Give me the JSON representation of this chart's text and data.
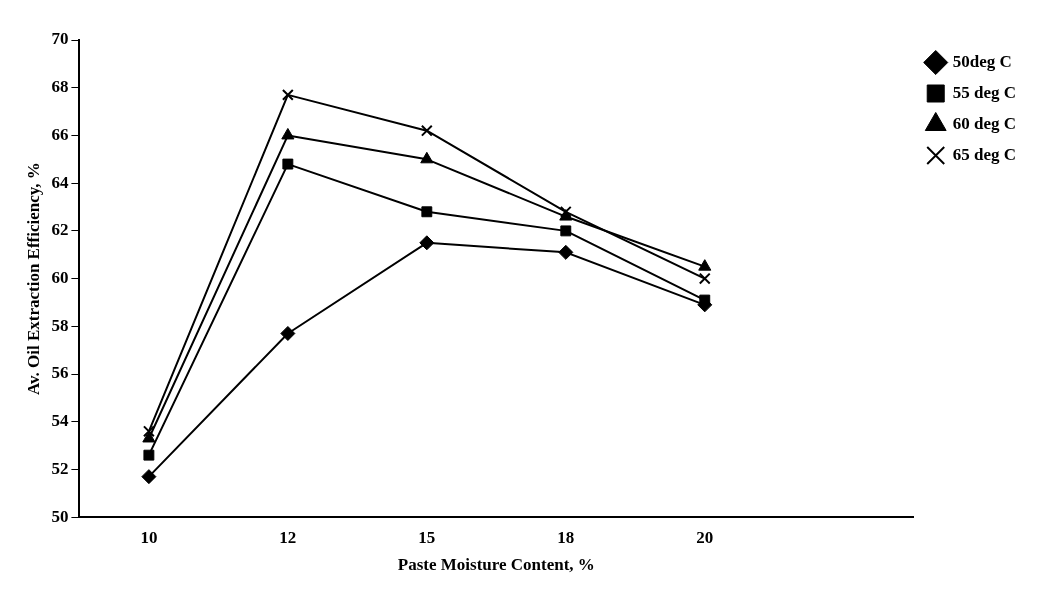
{
  "chart_data": {
    "type": "line",
    "xlabel": "Paste Moisture Content, %",
    "ylabel": "Av. Oil Extraction Efficiency, %",
    "categories": [
      "10",
      "12",
      "15",
      "18",
      "20",
      null
    ],
    "ylim": [
      50,
      70
    ],
    "yticks": [
      50,
      52,
      54,
      56,
      58,
      60,
      62,
      64,
      66,
      68,
      70
    ],
    "grid": false,
    "legend": "top right",
    "series": [
      {
        "name": "50deg C",
        "color": "#000000",
        "marker": "diamond",
        "values": [
          51.7,
          57.7,
          61.5,
          61.1,
          58.9,
          null
        ]
      },
      {
        "name": "55 deg C",
        "color": "#000000",
        "marker": "square",
        "values": [
          52.6,
          64.8,
          62.8,
          62.0,
          59.1,
          null
        ]
      },
      {
        "name": "60 deg C",
        "color": "#000000",
        "marker": "triangle",
        "values": [
          53.3,
          66.0,
          65.0,
          62.6,
          60.5,
          null
        ]
      },
      {
        "name": "65 deg C",
        "color": "#000000",
        "marker": "cross",
        "values": [
          53.6,
          67.7,
          66.2,
          62.8,
          60.0,
          null
        ]
      }
    ]
  }
}
